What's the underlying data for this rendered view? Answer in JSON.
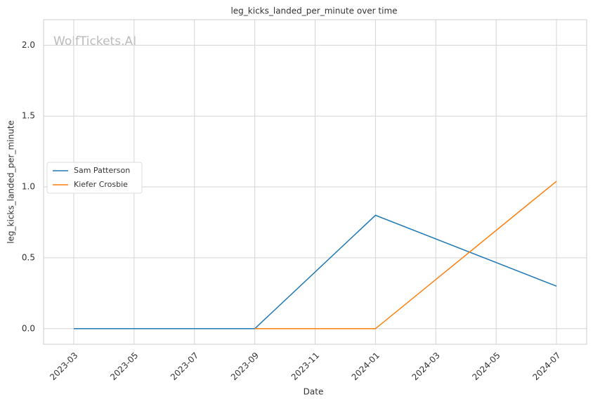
{
  "chart_data": {
    "type": "line",
    "title": "leg_kicks_landed_per_minute over time",
    "x_label": "Date",
    "y_label": "leg_kicks_landed_per_minute",
    "watermark": "WolfTickets.AI",
    "series": [
      {
        "name": "Sam Patterson",
        "color": "#1f77b4",
        "x": [
          "2023-03",
          "2023-09",
          "2024-01",
          "2024-07"
        ],
        "values": [
          0,
          0,
          0.8,
          0.3
        ]
      },
      {
        "name": "Kiefer Crosbie",
        "color": "#ff7f0e",
        "x": [
          "2023-09",
          "2024-01",
          "2024-07"
        ],
        "values": [
          0,
          0,
          1.04
        ]
      }
    ],
    "xlim": [
      "2023-02",
      "2024-08"
    ],
    "xticks": [
      "2023-03",
      "2023-05",
      "2023-07",
      "2023-09",
      "2023-11",
      "2024-01",
      "2024-03",
      "2024-05",
      "2024-07"
    ],
    "ylim": [
      -0.11,
      2.18
    ],
    "yticks": [
      {
        "value": 0,
        "label": "0.0"
      },
      0.5,
      {
        "value": 1,
        "label": "1.0"
      },
      1.5,
      {
        "value": 2,
        "label": "2.0"
      }
    ],
    "grid": true,
    "legend": "center left"
  }
}
